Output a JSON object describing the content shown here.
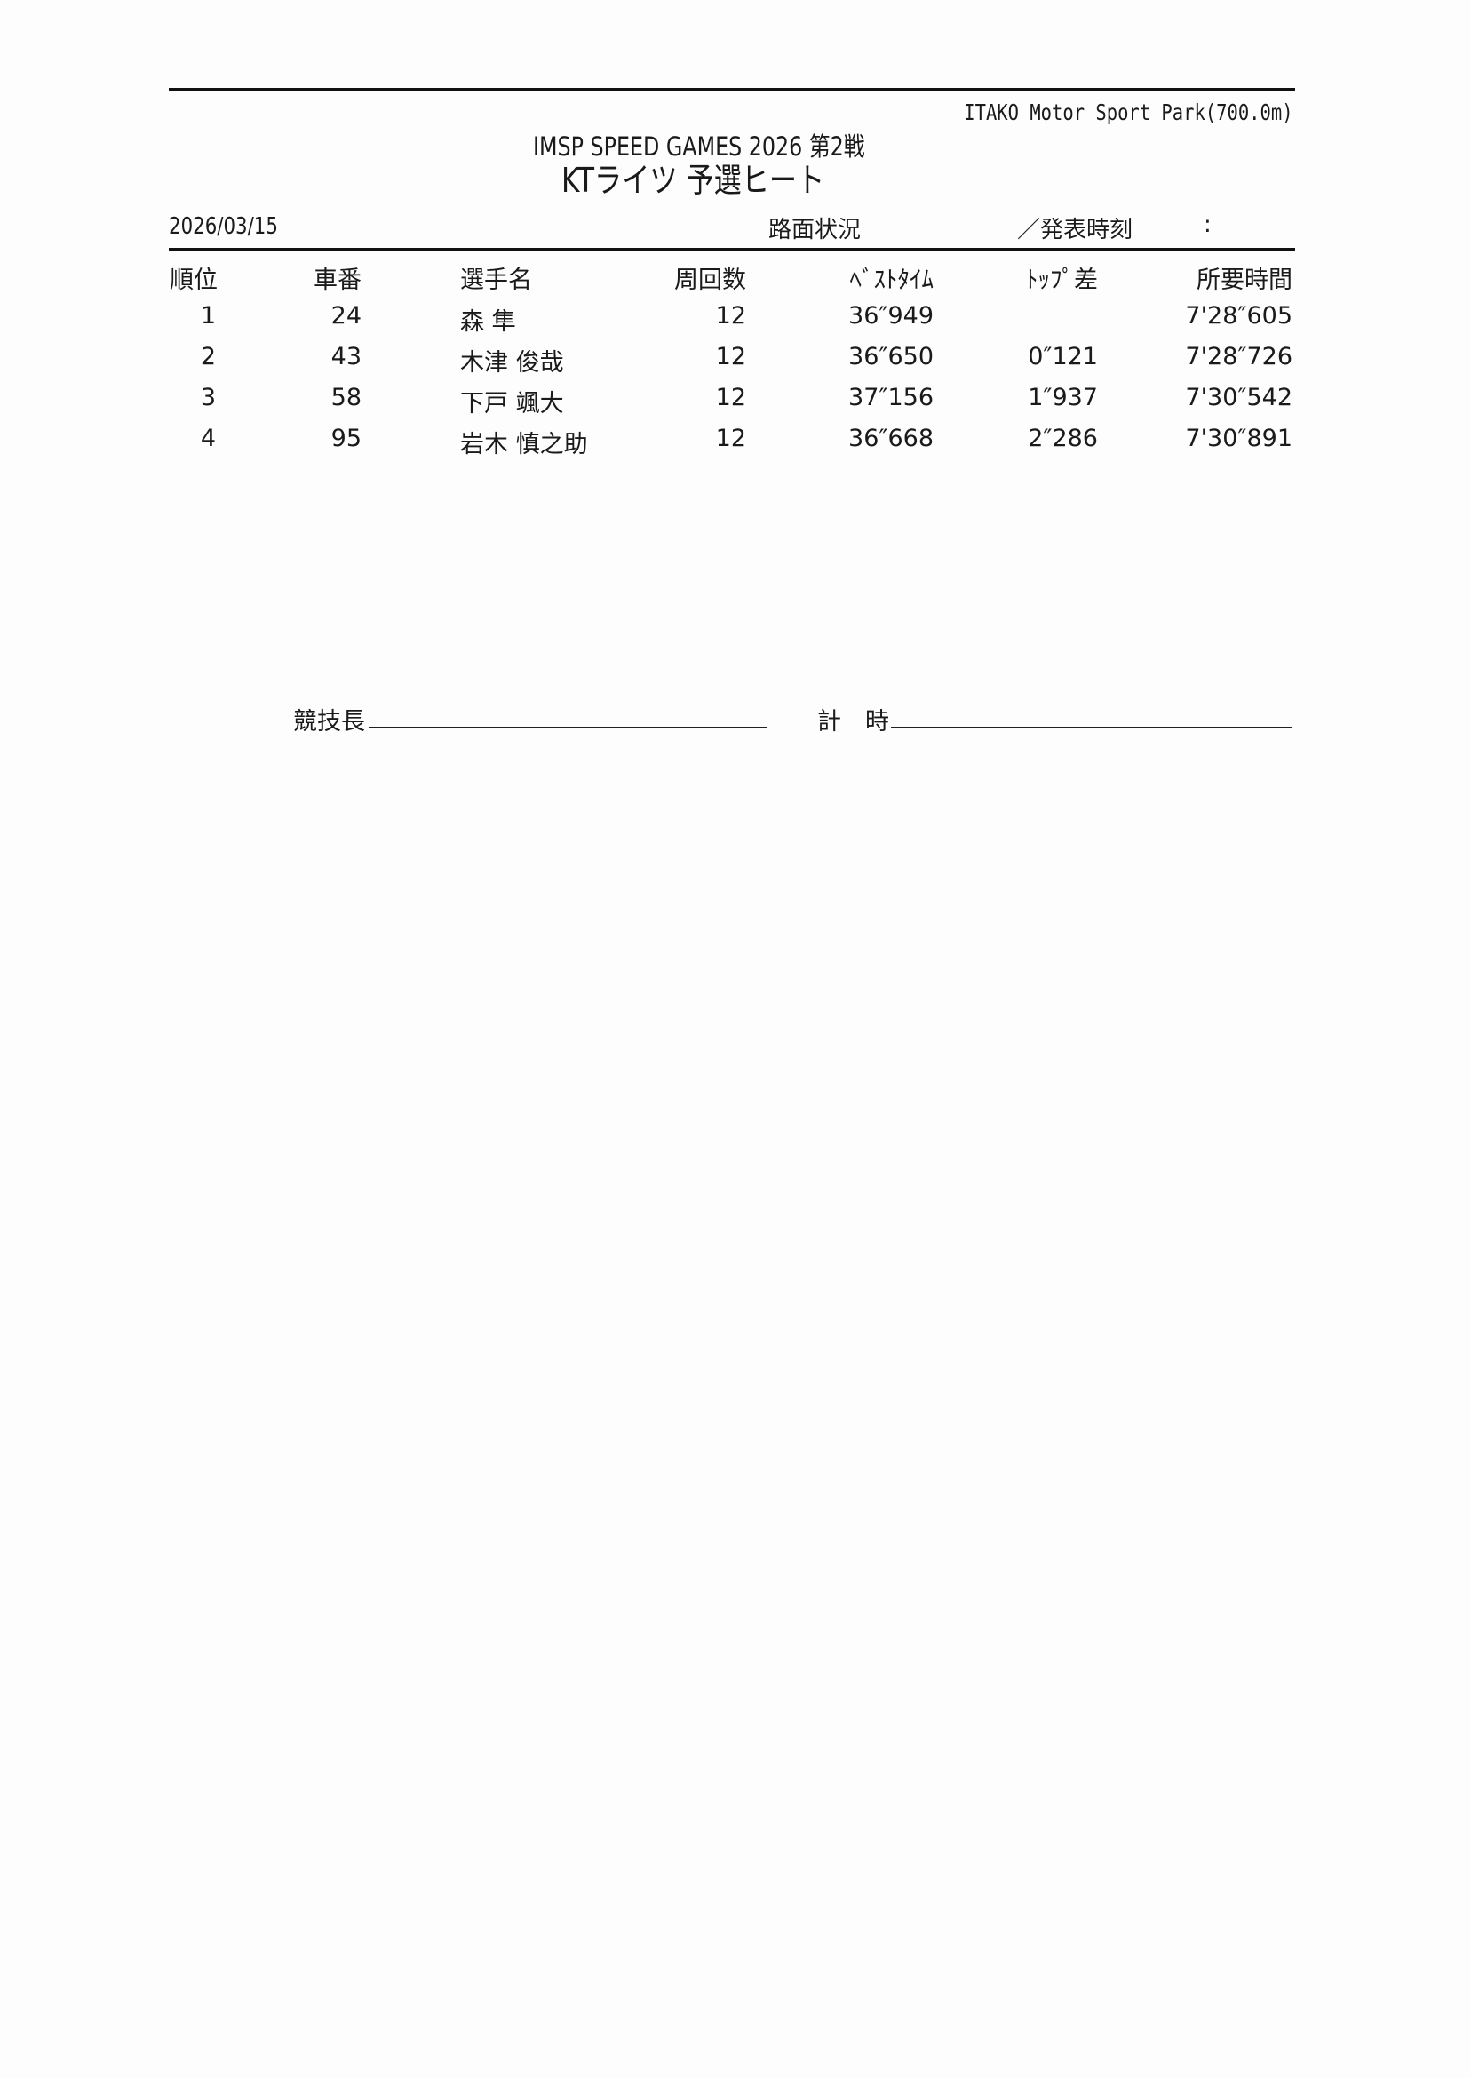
{
  "venue": "ITAKO Motor Sport Park(700.0m)",
  "event_title": "IMSP SPEED GAMES 2026 第2戦",
  "session_title": "KTライツ 予選ヒート",
  "date": "2026/03/15",
  "track_condition_label": "路面状況",
  "announce_time_label": "／発表時刻",
  "announce_time_value": ":",
  "columns": [
    "順位",
    "車番",
    "選手名",
    "周回数",
    "ﾍﾞｽﾄﾀｲﾑ",
    "ﾄｯﾌﾟ差",
    "所要時間"
  ],
  "rows": [
    {
      "pos": "1",
      "no": "24",
      "name": "森 隼",
      "laps": "12",
      "best": "36″949",
      "gap": "",
      "total": "7'28″605"
    },
    {
      "pos": "2",
      "no": "43",
      "name": "木津 俊哉",
      "laps": "12",
      "best": "36″650",
      "gap": "0″121",
      "total": "7'28″726"
    },
    {
      "pos": "3",
      "no": "58",
      "name": "下戸 颯大",
      "laps": "12",
      "best": "37″156",
      "gap": "1″937",
      "total": "7'30″542"
    },
    {
      "pos": "4",
      "no": "95",
      "name": "岩木 慎之助",
      "laps": "12",
      "best": "36″668",
      "gap": "2″286",
      "total": "7'30″891"
    }
  ],
  "signatures": {
    "race_director": "競技長",
    "timekeeper": "計　時"
  }
}
